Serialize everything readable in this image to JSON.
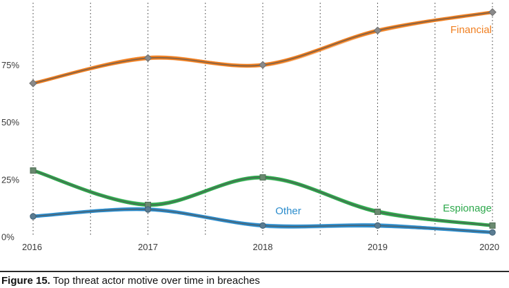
{
  "chart_data": {
    "type": "line",
    "x": [
      2016,
      2017,
      2018,
      2019,
      2020
    ],
    "xticks": [
      "2016",
      "2017",
      "2018",
      "2019",
      "2020"
    ],
    "yticks": [
      "0%",
      "25%",
      "50%",
      "75%"
    ],
    "ylim": [
      0,
      100
    ],
    "grid": "vertical dotted lines",
    "series": [
      {
        "name": "Financial",
        "color": "#f07f20",
        "values": [
          67,
          78,
          75,
          90,
          98
        ]
      },
      {
        "name": "Espionage",
        "color": "#2ca84b",
        "values": [
          29,
          14,
          26,
          11,
          5
        ]
      },
      {
        "name": "Other",
        "color": "#2b8ccc",
        "values": [
          9,
          12,
          5,
          5,
          2
        ]
      }
    ]
  },
  "caption": {
    "figure": "Figure 15.",
    "text": "Top threat actor motive over time in breaches"
  }
}
